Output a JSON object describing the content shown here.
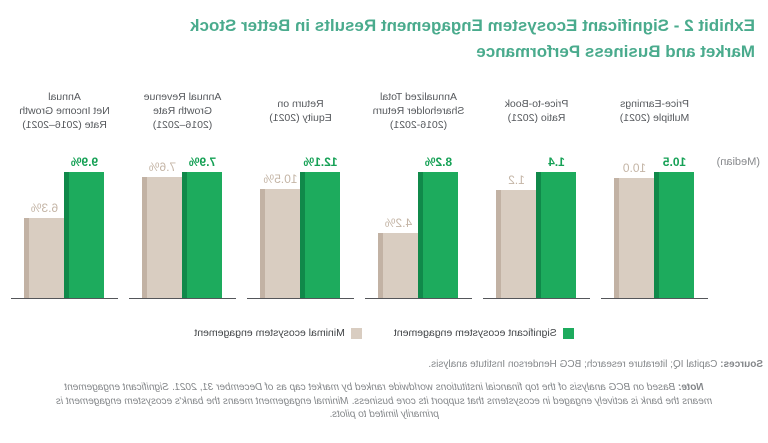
{
  "title": "Exhibit 2 - Significant Ecosystem Engagement Results in Better Stock\nMarket and Business Performance",
  "median_label": "(Median)",
  "colors": {
    "title_teal": "#4aab8d",
    "significant_green": "#1dab5d",
    "significant_green_side": "#10894a",
    "minimal_beige": "#d9cdc1",
    "minimal_beige_side": "#c2b2a4",
    "header_gray": "#55585c",
    "footnote_gray": "#84878a",
    "axis_gray": "#54565a"
  },
  "chart_data": {
    "type": "bar",
    "title": "Exhibit 2 - Significant Ecosystem Engagement Results in Better Stock Market and Business Performance",
    "annotation": "(Median)",
    "layout_hint": "entire screenshot is mirrored horizontally; per-category pairs share a normalized scale (bars not comparable across categories); no gridlines; legend bottom-center; value labels above bars",
    "categories": [
      "Price-Earnings\nMultiple (2021)",
      "Price-to-Book\nRatio (2021)",
      "Annualized Total\nShareholder Return\n(2016-2021)",
      "Return on\nEquity (2021)",
      "Annual Revenue\nGrowth Rate\n(2016–2021)",
      "Annual\nNet Income Growth\nRate (2016–2021)"
    ],
    "series": [
      {
        "name": "Significant ecosystem engagement",
        "color": "#1dab5d",
        "values": [
          10.5,
          1.4,
          8.2,
          12.1,
          7.9,
          9.9
        ],
        "labels": [
          "10.5",
          "1.4",
          "8.2%",
          "12.1%",
          "7.9%",
          "9.9%"
        ]
      },
      {
        "name": "Minimal ecosystem engagement",
        "color": "#d9cdc1",
        "values": [
          10.0,
          1.2,
          4.2,
          10.5,
          7.6,
          6.3
        ],
        "labels": [
          "10.0",
          "1.2",
          "4.2%",
          "10.5%",
          "7.6%",
          "6.3%"
        ]
      }
    ]
  },
  "legend": {
    "significant": "Significant ecosystem engagement",
    "minimal": "Minimal ecosystem engagement"
  },
  "sources": {
    "prefix": "Sources:",
    "text": " Capital IQ; literature research; BCG Henderson Institute analysis."
  },
  "note": {
    "prefix": "Note:",
    "text": " Based on BCG analysis of the top financial institutions worldwide ranked by market cap as of December 31, 2021. Significant engagement\nmeans the bank is actively engaged in ecosystems that support its core business. Minimal engagement means the bank's ecosystem engagement is\nprimarily limited to pilots."
  }
}
